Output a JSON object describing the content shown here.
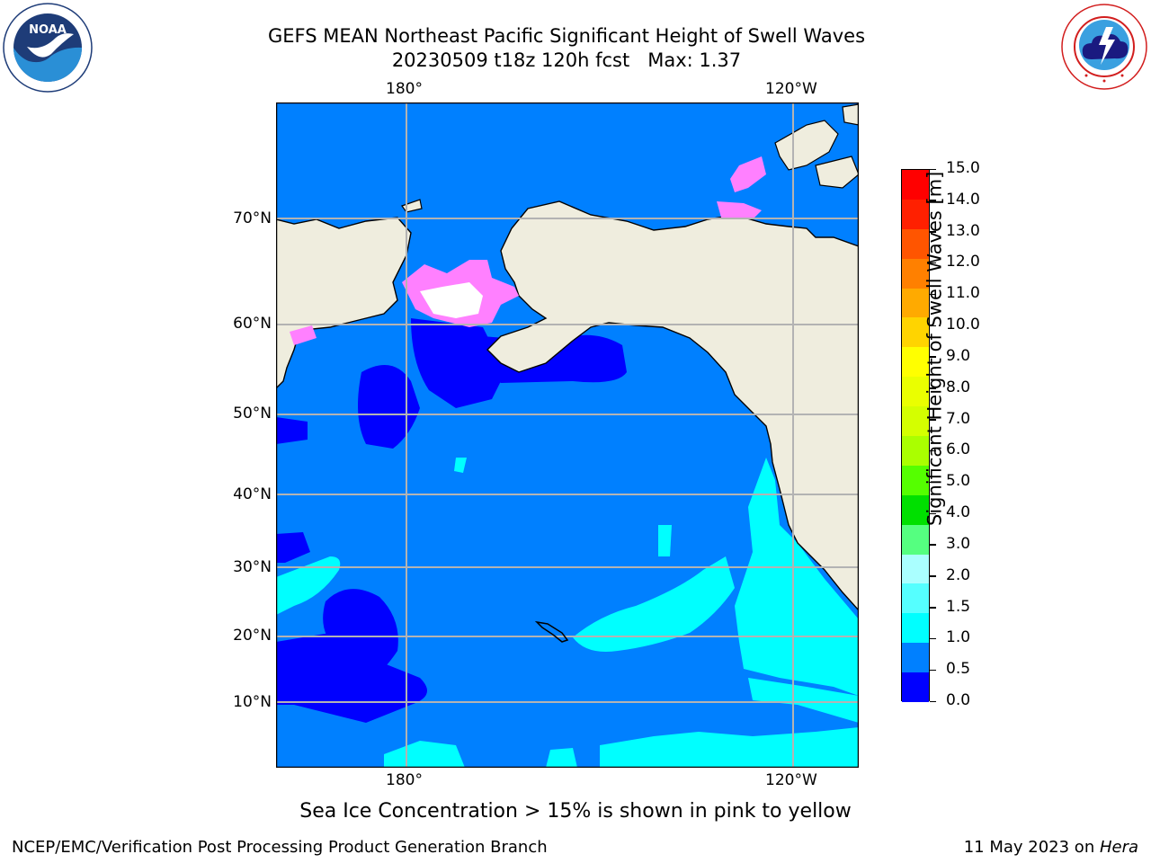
{
  "title": {
    "line1": "GEFS MEAN Northeast Pacific Significant Height of Swell Waves",
    "line2": "20230509 t18z 120h fcst   Max: 1.37"
  },
  "logos": {
    "left": {
      "text": "NOAA",
      "ring_text": "NATIONAL OCEANIC AND ATMOSPHERIC ADMINISTRATION · U.S. DEPARTMENT OF COMMERCE"
    },
    "right": {
      "ring_text": "NATIONAL WEATHER SERVICE"
    }
  },
  "map": {
    "lon_labels": [
      "180°",
      "120°W"
    ],
    "lat_labels": [
      "70°N",
      "60°N",
      "50°N",
      "40°N",
      "30°N",
      "20°N",
      "10°N"
    ],
    "colors": {
      "land": "#efedde",
      "ocean_1": "#0080ff",
      "ocean_05": "#0000ff",
      "ocean_15": "#00ffff",
      "grid": "#b3b3b3"
    }
  },
  "colorbar": {
    "title": "Significant Height of Swell Waves [m]",
    "ticks": [
      "15.0",
      "14.0",
      "13.0",
      "12.0",
      "11.0",
      "10.0",
      "9.0",
      "8.0",
      "7.0",
      "6.0",
      "5.0",
      "4.0",
      "3.0",
      "2.0",
      "1.5",
      "1.0",
      "0.5",
      "0.0"
    ],
    "colors": [
      "#ff0000",
      "#ff2000",
      "#ff5500",
      "#ff8000",
      "#ffaa00",
      "#ffd400",
      "#ffff00",
      "#eaff00",
      "#d4ff00",
      "#aaff00",
      "#55ff00",
      "#00e000",
      "#55ff80",
      "#aaffff",
      "#55ffff",
      "#00ffff",
      "#0080ff",
      "#0000ff"
    ]
  },
  "note": "Sea Ice Concentration > 15% is shown in pink to yellow",
  "footer": {
    "left": "NCEP/EMC/Verification Post Processing Product Generation Branch",
    "right_prefix": "11 May 2023 on ",
    "right_host": "Hera"
  }
}
